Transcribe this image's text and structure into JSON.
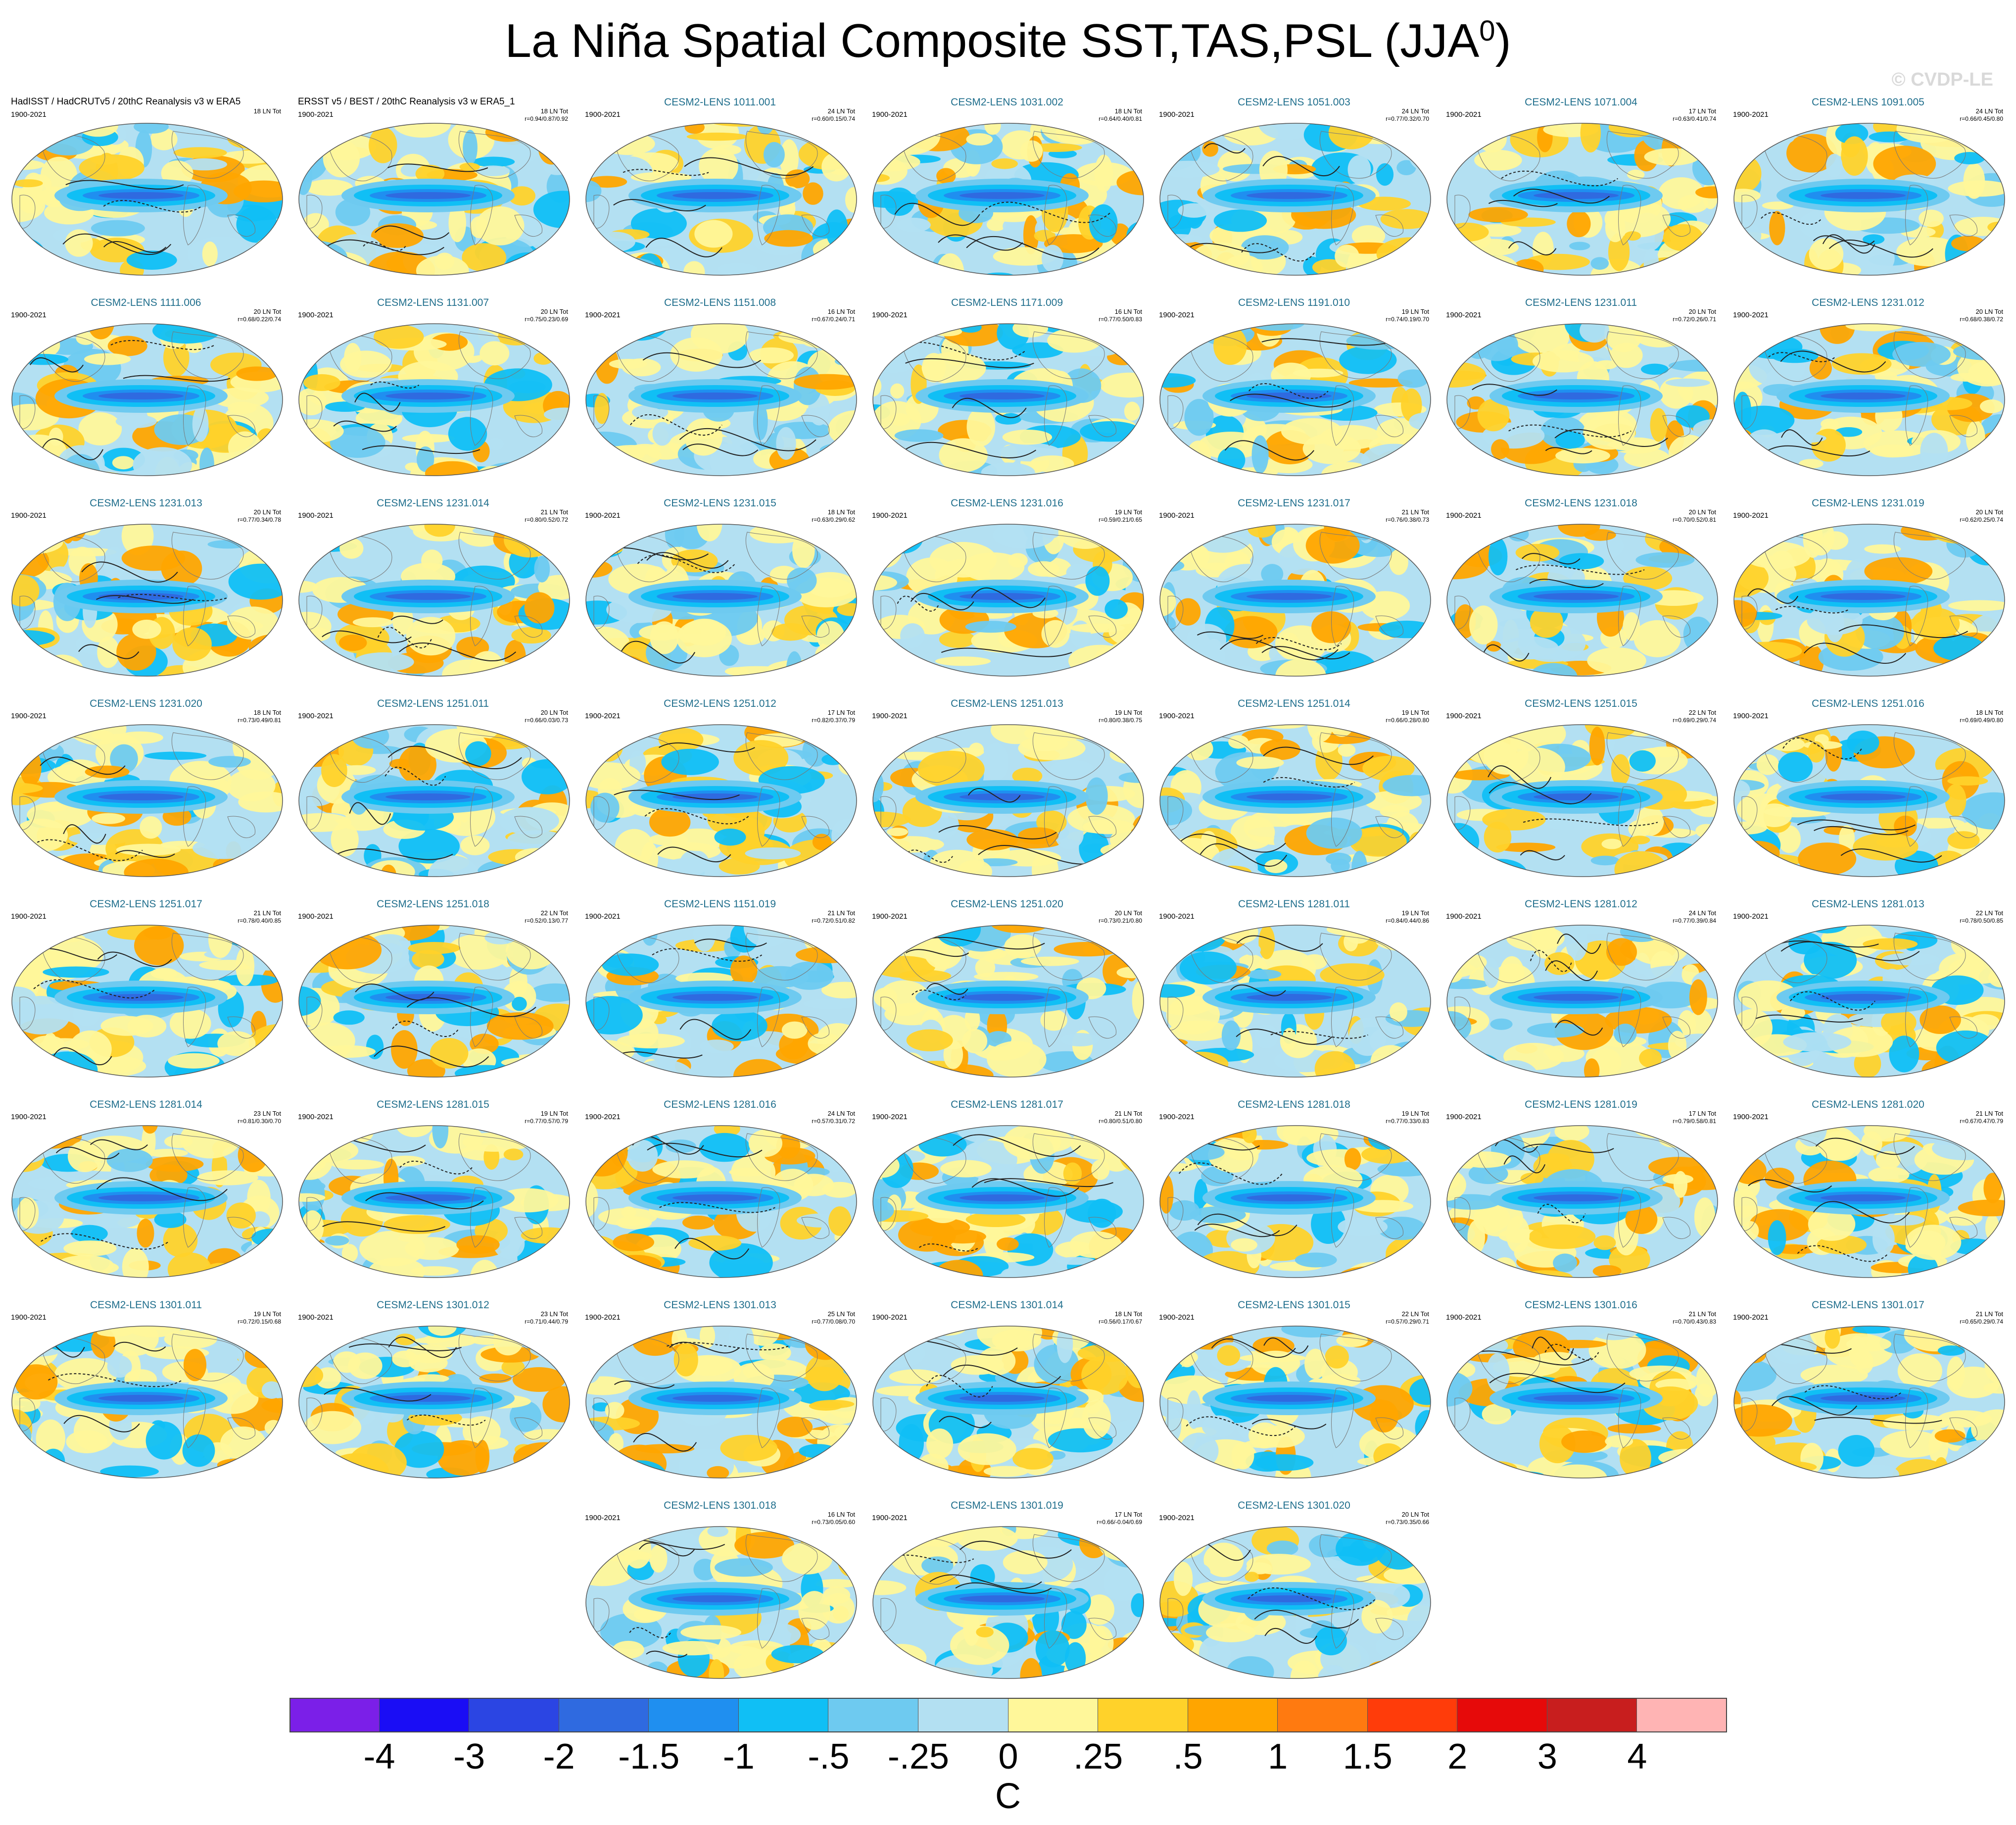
{
  "title": "La Niña Spatial Composite SST,TAS,PSL (JJA",
  "title_superscript": "0",
  "title_close": ")",
  "watermark": "© CVDP-LE",
  "chart_data": {
    "type": "heatmap",
    "description_variables": [
      "SST",
      "TAS",
      "PSL"
    ],
    "season": "JJA0",
    "units": "C",
    "colorbar": {
      "levels": [
        "-4",
        "-3",
        "-2",
        "-1.5",
        "-1",
        "-.5",
        "-.25",
        "0",
        ".25",
        ".5",
        "1",
        "1.5",
        "2",
        "3",
        "4"
      ],
      "colors": [
        "#7b1fe8",
        "#1a0df5",
        "#2b45e3",
        "#2f6ae0",
        "#1f8ff0",
        "#10bff5",
        "#6ecaf0",
        "#b3e0f2",
        "#fff79a",
        "#ffd22a",
        "#ffa500",
        "#ff7a10",
        "#ff3c0a",
        "#e60a0a",
        "#c81e1e",
        "#ffb4b4"
      ]
    },
    "panels": [
      {
        "title": "HadISST / HadCRUTv5 / 20thC Reanalysis v3 w ERA5",
        "period": "1900-2021",
        "count": "18 LN Tot",
        "r": "",
        "obs": true
      },
      {
        "title": "ERSST v5 / BEST / 20thC Reanalysis v3 w ERA5_1",
        "period": "1900-2021",
        "count": "18 LN Tot",
        "r": "r=0.94/0.87/0.92",
        "obs": true
      },
      {
        "title": "CESM2-LENS 1011.001",
        "period": "1900-2021",
        "count": "24 LN Tot",
        "r": "r=0.60/0.15/0.74"
      },
      {
        "title": "CESM2-LENS 1031.002",
        "period": "1900-2021",
        "count": "18 LN Tot",
        "r": "r=0.64/0.40/0.81"
      },
      {
        "title": "CESM2-LENS 1051.003",
        "period": "1900-2021",
        "count": "24 LN Tot",
        "r": "r=0.77/0.32/0.70"
      },
      {
        "title": "CESM2-LENS 1071.004",
        "period": "1900-2021",
        "count": "17 LN Tot",
        "r": "r=0.63/0.41/0.74"
      },
      {
        "title": "CESM2-LENS 1091.005",
        "period": "1900-2021",
        "count": "24 LN Tot",
        "r": "r=0.66/0.45/0.80"
      },
      {
        "title": "CESM2-LENS 1111.006",
        "period": "1900-2021",
        "count": "20 LN Tot",
        "r": "r=0.68/0.22/0.74"
      },
      {
        "title": "CESM2-LENS 1131.007",
        "period": "1900-2021",
        "count": "20 LN Tot",
        "r": "r=0.75/0.23/0.69"
      },
      {
        "title": "CESM2-LENS 1151.008",
        "period": "1900-2021",
        "count": "16 LN Tot",
        "r": "r=0.67/0.24/0.71"
      },
      {
        "title": "CESM2-LENS 1171.009",
        "period": "1900-2021",
        "count": "16 LN Tot",
        "r": "r=0.77/0.50/0.83"
      },
      {
        "title": "CESM2-LENS 1191.010",
        "period": "1900-2021",
        "count": "19 LN Tot",
        "r": "r=0.74/0.19/0.70"
      },
      {
        "title": "CESM2-LENS 1231.011",
        "period": "1900-2021",
        "count": "20 LN Tot",
        "r": "r=0.72/0.26/0.71"
      },
      {
        "title": "CESM2-LENS 1231.012",
        "period": "1900-2021",
        "count": "20 LN Tot",
        "r": "r=0.68/0.38/0.72"
      },
      {
        "title": "CESM2-LENS 1231.013",
        "period": "1900-2021",
        "count": "20 LN Tot",
        "r": "r=0.77/0.34/0.78"
      },
      {
        "title": "CESM2-LENS 1231.014",
        "period": "1900-2021",
        "count": "21 LN Tot",
        "r": "r=0.80/0.52/0.72"
      },
      {
        "title": "CESM2-LENS 1231.015",
        "period": "1900-2021",
        "count": "18 LN Tot",
        "r": "r=0.63/0.29/0.62"
      },
      {
        "title": "CESM2-LENS 1231.016",
        "period": "1900-2021",
        "count": "19 LN Tot",
        "r": "r=0.59/0.21/0.65"
      },
      {
        "title": "CESM2-LENS 1231.017",
        "period": "1900-2021",
        "count": "21 LN Tot",
        "r": "r=0.76/0.38/0.73"
      },
      {
        "title": "CESM2-LENS 1231.018",
        "period": "1900-2021",
        "count": "20 LN Tot",
        "r": "r=0.70/0.52/0.81"
      },
      {
        "title": "CESM2-LENS 1231.019",
        "period": "1900-2021",
        "count": "20 LN Tot",
        "r": "r=0.62/0.25/0.74"
      },
      {
        "title": "CESM2-LENS 1231.020",
        "period": "1900-2021",
        "count": "18 LN Tot",
        "r": "r=0.73/0.49/0.81"
      },
      {
        "title": "CESM2-LENS 1251.011",
        "period": "1900-2021",
        "count": "20 LN Tot",
        "r": "r=0.66/0.03/0.73"
      },
      {
        "title": "CESM2-LENS 1251.012",
        "period": "1900-2021",
        "count": "17 LN Tot",
        "r": "r=0.82/0.37/0.79"
      },
      {
        "title": "CESM2-LENS 1251.013",
        "period": "1900-2021",
        "count": "19 LN Tot",
        "r": "r=0.80/0.38/0.75"
      },
      {
        "title": "CESM2-LENS 1251.014",
        "period": "1900-2021",
        "count": "19 LN Tot",
        "r": "r=0.66/0.28/0.80"
      },
      {
        "title": "CESM2-LENS 1251.015",
        "period": "1900-2021",
        "count": "22 LN Tot",
        "r": "r=0.69/0.29/0.74"
      },
      {
        "title": "CESM2-LENS 1251.016",
        "period": "1900-2021",
        "count": "18 LN Tot",
        "r": "r=0.69/0.49/0.80"
      },
      {
        "title": "CESM2-LENS 1251.017",
        "period": "1900-2021",
        "count": "21 LN Tot",
        "r": "r=0.78/0.40/0.85"
      },
      {
        "title": "CESM2-LENS 1251.018",
        "period": "1900-2021",
        "count": "22 LN Tot",
        "r": "r=0.52/0.13/0.77"
      },
      {
        "title": "CESM2-LENS 1151.019",
        "period": "1900-2021",
        "count": "21 LN Tot",
        "r": "r=0.72/0.51/0.82"
      },
      {
        "title": "CESM2-LENS 1251.020",
        "period": "1900-2021",
        "count": "20 LN Tot",
        "r": "r=0.73/0.21/0.80"
      },
      {
        "title": "CESM2-LENS 1281.011",
        "period": "1900-2021",
        "count": "19 LN Tot",
        "r": "r=0.84/0.44/0.86"
      },
      {
        "title": "CESM2-LENS 1281.012",
        "period": "1900-2021",
        "count": "24 LN Tot",
        "r": "r=0.77/0.39/0.84"
      },
      {
        "title": "CESM2-LENS 1281.013",
        "period": "1900-2021",
        "count": "22 LN Tot",
        "r": "r=0.78/0.50/0.85"
      },
      {
        "title": "CESM2-LENS 1281.014",
        "period": "1900-2021",
        "count": "23 LN Tot",
        "r": "r=0.81/0.30/0.70"
      },
      {
        "title": "CESM2-LENS 1281.015",
        "period": "1900-2021",
        "count": "19 LN Tot",
        "r": "r=0.77/0.57/0.79"
      },
      {
        "title": "CESM2-LENS 1281.016",
        "period": "1900-2021",
        "count": "24 LN Tot",
        "r": "r=0.57/0.31/0.72"
      },
      {
        "title": "CESM2-LENS 1281.017",
        "period": "1900-2021",
        "count": "21 LN Tot",
        "r": "r=0.80/0.51/0.80"
      },
      {
        "title": "CESM2-LENS 1281.018",
        "period": "1900-2021",
        "count": "19 LN Tot",
        "r": "r=0.77/0.33/0.83"
      },
      {
        "title": "CESM2-LENS 1281.019",
        "period": "1900-2021",
        "count": "17 LN Tot",
        "r": "r=0.79/0.58/0.81"
      },
      {
        "title": "CESM2-LENS 1281.020",
        "period": "1900-2021",
        "count": "21 LN Tot",
        "r": "r=0.67/0.47/0.79"
      },
      {
        "title": "CESM2-LENS 1301.011",
        "period": "1900-2021",
        "count": "19 LN Tot",
        "r": "r=0.72/0.15/0.68"
      },
      {
        "title": "CESM2-LENS 1301.012",
        "period": "1900-2021",
        "count": "23 LN Tot",
        "r": "r=0.71/0.44/0.79"
      },
      {
        "title": "CESM2-LENS 1301.013",
        "period": "1900-2021",
        "count": "25 LN Tot",
        "r": "r=0.77/0.08/0.70"
      },
      {
        "title": "CESM2-LENS 1301.014",
        "period": "1900-2021",
        "count": "18 LN Tot",
        "r": "r=0.56/0.17/0.67"
      },
      {
        "title": "CESM2-LENS 1301.015",
        "period": "1900-2021",
        "count": "22 LN Tot",
        "r": "r=0.57/0.29/0.71"
      },
      {
        "title": "CESM2-LENS 1301.016",
        "period": "1900-2021",
        "count": "21 LN Tot",
        "r": "r=0.70/0.43/0.83"
      },
      {
        "title": "CESM2-LENS 1301.017",
        "period": "1900-2021",
        "count": "21 LN Tot",
        "r": "r=0.65/0.29/0.74"
      },
      {
        "title": "CESM2-LENS 1301.018",
        "period": "1900-2021",
        "count": "16 LN Tot",
        "r": "r=0.73/0.05/0.60"
      },
      {
        "title": "CESM2-LENS 1301.019",
        "period": "1900-2021",
        "count": "17 LN Tot",
        "r": "r=0.66/-0.04/0.69"
      },
      {
        "title": "CESM2-LENS 1301.020",
        "period": "1900-2021",
        "count": "20 LN Tot",
        "r": "r=0.73/0.35/0.66"
      }
    ]
  }
}
